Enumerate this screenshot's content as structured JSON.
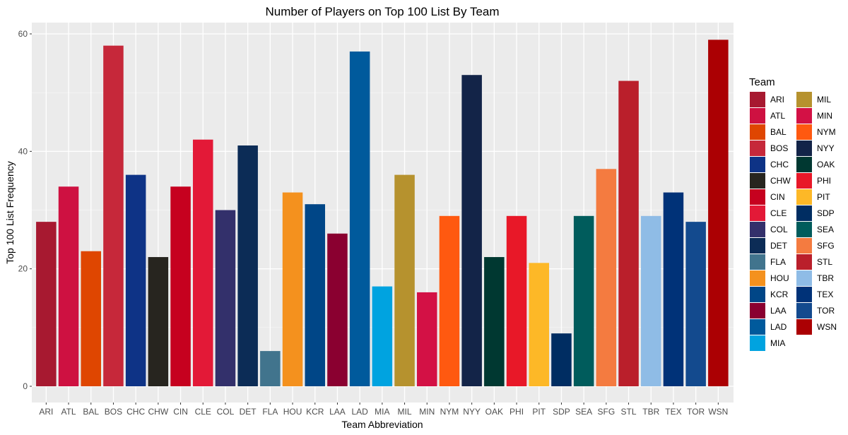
{
  "chart_data": {
    "type": "bar",
    "title": "Number of Players on Top 100 List By Team",
    "xlabel": "Team Abbreviation",
    "ylabel": "Top 100 List Frequency",
    "ylim": [
      0,
      62
    ],
    "yticks": [
      0,
      20,
      40,
      60
    ],
    "grid": true,
    "legend_position": "right",
    "legend_title": "Team",
    "categories": [
      "ARI",
      "ATL",
      "BAL",
      "BOS",
      "CHC",
      "CHW",
      "CIN",
      "CLE",
      "COL",
      "DET",
      "FLA",
      "HOU",
      "KCR",
      "LAA",
      "LAD",
      "MIA",
      "MIL",
      "MIN",
      "NYM",
      "NYY",
      "OAK",
      "PHI",
      "PIT",
      "SDP",
      "SEA",
      "SFG",
      "STL",
      "TBR",
      "TEX",
      "TOR",
      "WSN"
    ],
    "values": [
      28,
      34,
      23,
      58,
      36,
      22,
      34,
      42,
      30,
      41,
      6,
      33,
      31,
      26,
      57,
      17,
      36,
      16,
      29,
      53,
      22,
      29,
      21,
      9,
      29,
      37,
      52,
      29,
      33,
      28,
      59
    ],
    "colors": [
      "#A71930",
      "#CE1141",
      "#DF4601",
      "#C6283A",
      "#0E3386",
      "#27251F",
      "#C6011F",
      "#E31937",
      "#33306B",
      "#0C2C56",
      "#41748D",
      "#F4911E",
      "#004687",
      "#8A0030",
      "#005A9C",
      "#00A3E0",
      "#B6922E",
      "#D31145",
      "#FF5910",
      "#132448",
      "#003831",
      "#E81828",
      "#FDB827",
      "#002D62",
      "#005C5C",
      "#F47B40",
      "#BA1F2B",
      "#8FBCE6",
      "#003278",
      "#134A8E",
      "#AB0003"
    ]
  }
}
